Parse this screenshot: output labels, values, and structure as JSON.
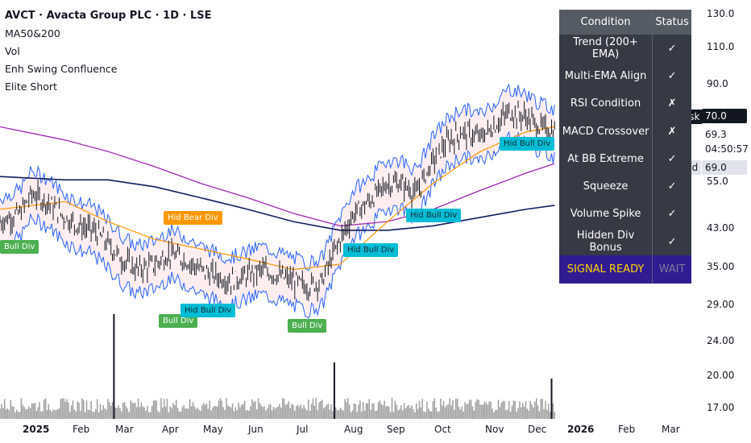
{
  "header": {
    "title": "AVCT · Avacta Group PLC · 1D · LSE",
    "indicators": [
      "MA50&200",
      "Vol",
      "Enh Swing Confluence",
      "Elite Short"
    ]
  },
  "price_scale": {
    "labels": [
      "130.0",
      "110.0",
      "90.0",
      "55.0",
      "43.00",
      "35.00",
      "29.00",
      "24.00",
      "20.00",
      "17.00"
    ],
    "ask_label": "Ask",
    "ask_value": "70.0",
    "last_value": "69.3",
    "countdown": "04:50:57",
    "bid_label": "Bid",
    "bid_value": "69.0"
  },
  "time_axis": [
    "2025",
    "Feb",
    "Mar",
    "Apr",
    "May",
    "Jun",
    "Jul",
    "Aug",
    "Sep",
    "Oct",
    "Nov",
    "Dec",
    "2026",
    "Feb",
    "Mar"
  ],
  "table": {
    "header": [
      "Condition",
      "Status"
    ],
    "rows": [
      {
        "condition": "Trend (200+ EMA)",
        "status": "✓",
        "state": "ok"
      },
      {
        "condition": "Multi-EMA Align",
        "status": "✓",
        "state": "ok"
      },
      {
        "condition": "RSI Condition",
        "status": "✗",
        "state": "bad"
      },
      {
        "condition": "MACD Crossover",
        "status": "✗",
        "state": "bad"
      },
      {
        "condition": "At BB Extreme",
        "status": "✓",
        "state": "ok"
      },
      {
        "condition": "Squeeze",
        "status": "✓",
        "state": "ok"
      },
      {
        "condition": "Volume Spike",
        "status": "✓",
        "state": "ok"
      },
      {
        "condition": "Hidden Div Bonus",
        "status": "✓",
        "state": "blue"
      }
    ],
    "signal": "SIGNAL READY",
    "signal_status": "WAIT"
  },
  "annotations": {
    "bull_div_1": "Bull Div",
    "hid_bear_div": "Hid Bear Div",
    "bull_div_2": "Bull Div",
    "hid_bull_div_1": "Hid Bull Div",
    "bull_div_3": "Bull Div",
    "hid_bull_div_2": "Hid Bull Div",
    "hid_bull_div_3": "Hid Bull Div",
    "hid_bull_div_4": "Hid Bull Div"
  },
  "colors": {
    "ma50": "#ff9800",
    "ma200": "#131f5e",
    "ema_purple": "#9c27b0",
    "bb": "#2962ff",
    "bull_fill": "#e8f5e9",
    "bear_fill": "#fde7ea",
    "bar": "#131722",
    "volume": "#9e9e9e"
  },
  "chart_data": {
    "type": "candlestick",
    "scale": "log",
    "x_range": [
      "2024-12-20",
      "2026-03-20"
    ],
    "y_range": [
      16,
      135
    ],
    "series": [
      {
        "x": [
          "2024-12-20",
          "2025-01-02",
          "2025-01-10",
          "2025-01-20",
          "2025-02-01",
          "2025-02-10",
          "2025-02-20",
          "2025-03-01",
          "2025-03-10",
          "2025-03-20",
          "2025-04-01",
          "2025-04-10",
          "2025-04-20",
          "2025-05-01",
          "2025-05-10",
          "2025-05-20",
          "2025-06-01",
          "2025-06-10",
          "2025-06-20",
          "2025-07-01",
          "2025-07-10",
          "2025-07-20",
          "2025-08-01",
          "2025-08-10",
          "2025-08-20",
          "2025-09-01",
          "2025-09-10",
          "2025-09-20",
          "2025-10-01",
          "2025-10-10",
          "2025-10-20",
          "2025-11-01",
          "2025-11-10",
          "2025-11-20",
          "2025-12-01",
          "2025-12-10",
          "2025-12-20"
        ],
        "close": [
          45,
          47,
          52,
          50,
          46,
          44,
          43,
          40,
          37,
          35,
          36,
          38,
          37,
          35,
          34,
          33,
          34,
          35,
          34,
          33,
          32,
          33,
          41,
          47,
          50,
          55,
          55,
          52,
          62,
          68,
          72,
          70,
          74,
          80,
          78,
          74,
          72
        ]
      }
    ],
    "ma50": {
      "x": [
        "2024-12-20",
        "2025-02-01",
        "2025-03-01",
        "2025-04-01",
        "2025-05-01",
        "2025-06-01",
        "2025-07-01",
        "2025-08-01",
        "2025-09-01",
        "2025-10-01",
        "2025-11-01",
        "2025-12-01",
        "2025-12-20"
      ],
      "y": [
        48,
        50,
        45,
        41,
        39,
        37,
        35,
        36,
        45,
        55,
        65,
        72,
        74
      ]
    },
    "ma200": {
      "x": [
        "2024-12-20",
        "2025-02-01",
        "2025-03-01",
        "2025-04-01",
        "2025-05-01",
        "2025-06-01",
        "2025-07-01",
        "2025-08-01",
        "2025-09-01",
        "2025-10-01",
        "2025-11-01",
        "2025-12-01",
        "2025-12-20"
      ],
      "y": [
        57,
        56,
        56,
        54,
        51,
        48,
        45,
        43,
        43,
        44,
        46,
        48,
        49
      ]
    },
    "ema_purple": {
      "x": [
        "2024-12-20",
        "2025-02-01",
        "2025-03-01",
        "2025-04-01",
        "2025-05-01",
        "2025-06-01",
        "2025-07-01",
        "2025-08-01",
        "2025-09-01",
        "2025-10-01",
        "2025-11-01",
        "2025-12-01",
        "2025-12-20"
      ],
      "y": [
        74,
        69,
        65,
        60,
        55,
        51,
        47,
        44,
        45,
        48,
        53,
        58,
        61
      ]
    },
    "volume": {
      "x": [
        "2025-03-05",
        "2025-07-28",
        "2025-12-18"
      ],
      "note_values": [
        28,
        12,
        8
      ]
    }
  }
}
